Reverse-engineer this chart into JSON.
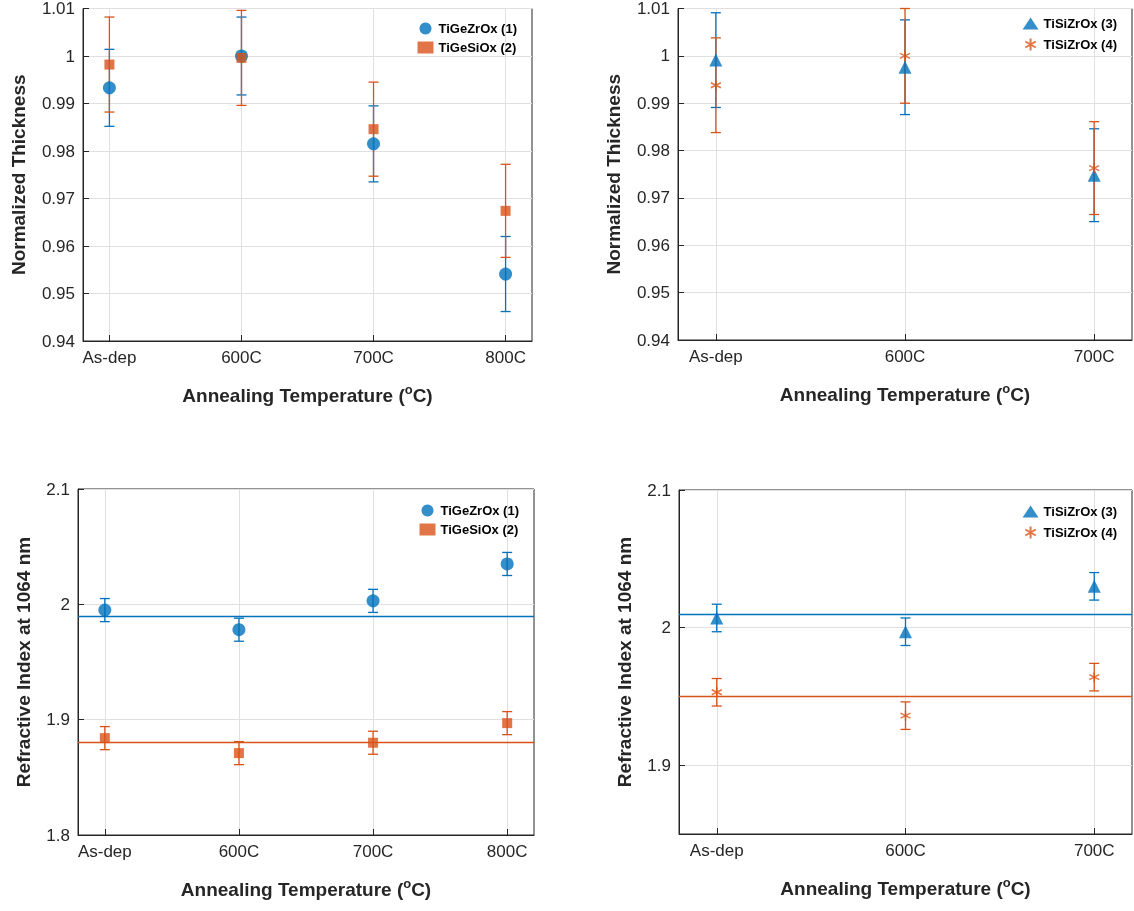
{
  "chart_data": [
    {
      "type": "scatter",
      "xlabel": "Annealing Temperature ($^{o}$C)",
      "ylabel": "Normalized Thickness",
      "categories": [
        "As-dep",
        "600C",
        "700C",
        "800C"
      ],
      "ylim": [
        0.94,
        1.01
      ],
      "yticks": [
        0.94,
        0.95,
        0.96,
        0.97,
        0.98,
        0.99,
        1,
        1.01
      ],
      "grid": true,
      "legend": "top right",
      "series": [
        {
          "name": "TiGeZrOx (1)",
          "color": "#0072bd",
          "marker": "circle",
          "values": [
            0.9933,
            1.0,
            0.9815,
            0.9541
          ],
          "errors": [
            0.0081,
            0.0082,
            0.008,
            0.0079
          ]
        },
        {
          "name": "TiGeSiOx (2)",
          "color": "#d95319",
          "marker": "square",
          "values": [
            0.9982,
            0.9996,
            0.9846,
            0.9674
          ],
          "errors": [
            0.01,
            0.01,
            0.0099,
            0.0098
          ]
        }
      ]
    },
    {
      "type": "scatter",
      "xlabel": "Annealing Temperature ($^{o}$C)",
      "ylabel": "Normalized Thickness",
      "categories": [
        "As-dep",
        "600C",
        "700C"
      ],
      "ylim": [
        0.94,
        1.01
      ],
      "yticks": [
        0.94,
        0.95,
        0.96,
        0.97,
        0.98,
        0.99,
        1,
        1.01
      ],
      "grid": true,
      "legend": "top right",
      "series": [
        {
          "name": "TiSiZrOx (3)",
          "color": "#0072bd",
          "marker": "triangle",
          "values": [
            0.9991,
            0.9976,
            0.9748
          ],
          "errors": [
            0.01,
            0.01,
            0.0098
          ]
        },
        {
          "name": "TiSiZrOx (4)",
          "color": "#d95319",
          "marker": "cross",
          "values": [
            0.9938,
            1.0,
            0.9763
          ],
          "errors": [
            0.01,
            0.01,
            0.0098
          ]
        }
      ]
    },
    {
      "type": "scatter",
      "xlabel": "Annealing Temperature ($^{o}$C)",
      "ylabel": "Refractive Index at 1064 nm",
      "categories": [
        "As-dep",
        "600C",
        "700C",
        "800C"
      ],
      "ylim": [
        1.8,
        2.1
      ],
      "yticks": [
        1.8,
        1.9,
        2,
        2.1
      ],
      "grid": true,
      "legend": "top right",
      "ref_lines": [
        {
          "axis": "y",
          "value": 1.99,
          "color": "#0072bd"
        },
        {
          "axis": "y",
          "value": 1.88,
          "color": "#d95319"
        }
      ],
      "series": [
        {
          "name": "TiGeZrOx (1)",
          "color": "#0072bd",
          "marker": "circle",
          "values": [
            1.995,
            1.978,
            2.003,
            2.035
          ],
          "errors": [
            0.01,
            0.01,
            0.01,
            0.01
          ]
        },
        {
          "name": "TiGeSiOx (2)",
          "color": "#d95319",
          "marker": "square",
          "values": [
            1.884,
            1.871,
            1.88,
            1.897
          ],
          "errors": [
            0.01,
            0.01,
            0.01,
            0.01
          ]
        }
      ]
    },
    {
      "type": "scatter",
      "xlabel": "Annealing Temperature ($^{o}$C)",
      "ylabel": "Refractive Index at 1064 nm",
      "categories": [
        "As-dep",
        "600C",
        "700C"
      ],
      "ylim": [
        1.85,
        2.1
      ],
      "yticks": [
        1.9,
        2,
        2.1
      ],
      "grid": true,
      "legend": "top right",
      "ref_lines": [
        {
          "axis": "y",
          "value": 2.01,
          "color": "#0072bd"
        },
        {
          "axis": "y",
          "value": 1.95,
          "color": "#d95319"
        }
      ],
      "series": [
        {
          "name": "TiSiZrOx (3)",
          "color": "#0072bd",
          "marker": "triangle",
          "values": [
            2.007,
            1.997,
            2.03
          ],
          "errors": [
            0.01,
            0.01,
            0.01
          ]
        },
        {
          "name": "TiSiZrOx (4)",
          "color": "#d95319",
          "marker": "cross",
          "values": [
            1.953,
            1.936,
            1.964
          ],
          "errors": [
            0.01,
            0.01,
            0.01
          ]
        }
      ]
    }
  ]
}
